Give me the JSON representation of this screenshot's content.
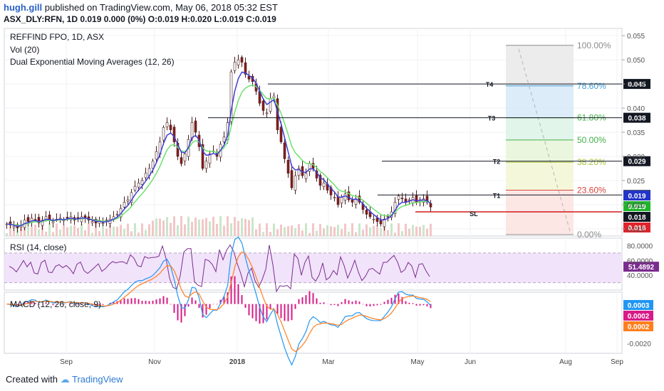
{
  "header": {
    "user": "hugh.gill",
    "published": "published on TradingView.com, May 06, 2018 05:32 EST",
    "ohlc": "ASX_DLY:RFN, 1D 0.019 0.000 (0%) O:0.019 H:0.020 L:0.019 C:0.019"
  },
  "legend": {
    "symbol": "REFFIND FPO, 1D, ASX",
    "vol": "Vol (20)",
    "dema": "Dual Exponential Moving Averages (12, 26)",
    "rsi": "RSI (14, close)",
    "macd": "MACD (12, 26, close, 9)"
  },
  "footer": {
    "created": "Created with",
    "brand": "TradingView"
  },
  "colors": {
    "up": "#ffffff",
    "down": "#8b1a1a",
    "ema_fast": "#3f3fd6",
    "ema_slow": "#6ee06e",
    "rsi": "#7b2d8e",
    "macd": "#2196f3",
    "signal": "#ff7f1e",
    "hist": "#d81b87"
  },
  "chart_data": {
    "type": "candlestick",
    "x_ticks": [
      "Sep",
      "Nov",
      "2018",
      "Mar",
      "May",
      "Jun",
      "Aug",
      "Sep"
    ],
    "y_ticks": [
      "0.055",
      "0.050",
      "0.045",
      "0.040",
      "0.035",
      "0.030",
      "0.025",
      "0.020",
      "0.015"
    ],
    "ylim": [
      0.0135,
      0.0565
    ],
    "price_close_path": [
      [
        0,
        0.016
      ],
      [
        5,
        0.0158
      ],
      [
        10,
        0.0155
      ],
      [
        15,
        0.0152
      ],
      [
        20,
        0.0158
      ],
      [
        25,
        0.0168
      ],
      [
        30,
        0.0165
      ],
      [
        35,
        0.0172
      ],
      [
        40,
        0.0168
      ],
      [
        45,
        0.0162
      ],
      [
        50,
        0.0168
      ],
      [
        55,
        0.0175
      ],
      [
        60,
        0.0168
      ],
      [
        65,
        0.0165
      ],
      [
        70,
        0.017
      ],
      [
        75,
        0.0172
      ],
      [
        80,
        0.0168
      ],
      [
        85,
        0.0172
      ],
      [
        90,
        0.0175
      ],
      [
        95,
        0.0168
      ],
      [
        100,
        0.017
      ],
      [
        105,
        0.0175
      ],
      [
        110,
        0.0172
      ],
      [
        115,
        0.0168
      ],
      [
        120,
        0.0165
      ],
      [
        125,
        0.0162
      ],
      [
        130,
        0.0165
      ],
      [
        135,
        0.0162
      ],
      [
        140,
        0.0165
      ],
      [
        145,
        0.017
      ],
      [
        150,
        0.0175
      ],
      [
        155,
        0.018
      ],
      [
        160,
        0.0192
      ],
      [
        165,
        0.0205
      ],
      [
        170,
        0.021
      ],
      [
        175,
        0.0225
      ],
      [
        180,
        0.0238
      ],
      [
        185,
        0.0245
      ],
      [
        190,
        0.025
      ],
      [
        195,
        0.0265
      ],
      [
        200,
        0.0275
      ],
      [
        205,
        0.029
      ],
      [
        210,
        0.031
      ],
      [
        215,
        0.033
      ],
      [
        220,
        0.036
      ],
      [
        225,
        0.037
      ],
      [
        230,
        0.0355
      ],
      [
        235,
        0.033
      ],
      [
        240,
        0.03
      ],
      [
        245,
        0.0285
      ],
      [
        250,
        0.0305
      ],
      [
        255,
        0.0335
      ],
      [
        260,
        0.037
      ],
      [
        265,
        0.035
      ],
      [
        270,
        0.032
      ],
      [
        275,
        0.0275
      ],
      [
        280,
        0.029
      ],
      [
        285,
        0.0305
      ],
      [
        290,
        0.031
      ],
      [
        295,
        0.03
      ],
      [
        300,
        0.0325
      ],
      [
        305,
        0.034
      ],
      [
        310,
        0.037
      ],
      [
        315,
        0.0475
      ],
      [
        320,
        0.0495
      ],
      [
        325,
        0.05
      ],
      [
        330,
        0.0495
      ],
      [
        335,
        0.047
      ],
      [
        340,
        0.046
      ],
      [
        345,
        0.0455
      ],
      [
        350,
        0.0435
      ],
      [
        355,
        0.041
      ],
      [
        360,
        0.0395
      ],
      [
        365,
        0.039
      ],
      [
        370,
        0.042
      ],
      [
        375,
        0.0425
      ],
      [
        380,
        0.0355
      ],
      [
        385,
        0.033
      ],
      [
        390,
        0.0295
      ],
      [
        395,
        0.0265
      ],
      [
        400,
        0.0235
      ],
      [
        405,
        0.026
      ],
      [
        410,
        0.0275
      ],
      [
        415,
        0.026
      ],
      [
        420,
        0.0265
      ],
      [
        425,
        0.0285
      ],
      [
        430,
        0.0275
      ],
      [
        435,
        0.0255
      ],
      [
        440,
        0.024
      ],
      [
        445,
        0.0245
      ],
      [
        450,
        0.023
      ],
      [
        455,
        0.022
      ],
      [
        460,
        0.0215
      ],
      [
        465,
        0.02
      ],
      [
        470,
        0.0215
      ],
      [
        475,
        0.0222
      ],
      [
        480,
        0.021
      ],
      [
        485,
        0.0205
      ],
      [
        490,
        0.0212
      ],
      [
        495,
        0.0205
      ],
      [
        500,
        0.019
      ],
      [
        505,
        0.018
      ],
      [
        510,
        0.0175
      ],
      [
        515,
        0.017
      ],
      [
        520,
        0.0165
      ],
      [
        525,
        0.016
      ],
      [
        530,
        0.017
      ],
      [
        535,
        0.0175
      ],
      [
        540,
        0.0185
      ],
      [
        545,
        0.0205
      ],
      [
        550,
        0.0218
      ],
      [
        555,
        0.0212
      ],
      [
        560,
        0.0205
      ],
      [
        565,
        0.021
      ],
      [
        570,
        0.0215
      ],
      [
        575,
        0.0205
      ],
      [
        580,
        0.021
      ],
      [
        585,
        0.0212
      ],
      [
        590,
        0.0205
      ],
      [
        595,
        0.0195
      ]
    ],
    "levels": [
      {
        "name": "T4",
        "value": 0.045,
        "label": "0.045"
      },
      {
        "name": "T3",
        "value": 0.038,
        "label": "0.038"
      },
      {
        "name": "T2",
        "value": 0.029,
        "label": "0.029"
      },
      {
        "name": "T1",
        "value": 0.022,
        "label": "0.022"
      },
      {
        "name": "SL",
        "value": 0.0185,
        "label": ""
      }
    ],
    "price_tags": [
      "0.019",
      "0.019",
      "0.018",
      "0.016"
    ],
    "fibonacci": [
      {
        "label": "100.00%",
        "value": 0.053,
        "color": "#8c8c8c"
      },
      {
        "label": "78.60%",
        "value": 0.0446,
        "color": "#3c9bd6"
      },
      {
        "label": "61.80%",
        "value": 0.038,
        "color": "#43b04a"
      },
      {
        "label": "50.00%",
        "value": 0.0334,
        "color": "#43b04a"
      },
      {
        "label": "38.20%",
        "value": 0.0288,
        "color": "#a7c13a"
      },
      {
        "label": "23.60%",
        "value": 0.023,
        "color": "#d9453b"
      },
      {
        "label": "0.00%",
        "value": 0.0138,
        "color": "#8c8c8c"
      }
    ],
    "rsi": {
      "ticks": [
        "80.0000",
        "60.0000",
        "40.0000"
      ],
      "last": "51.4892",
      "ylim": [
        20,
        90
      ]
    },
    "macd": {
      "ticks": [
        "-0.0020"
      ],
      "tags": [
        "0.0003",
        "0.0002",
        "0.0002"
      ],
      "ylim": [
        -0.0025,
        0.0006
      ]
    }
  }
}
